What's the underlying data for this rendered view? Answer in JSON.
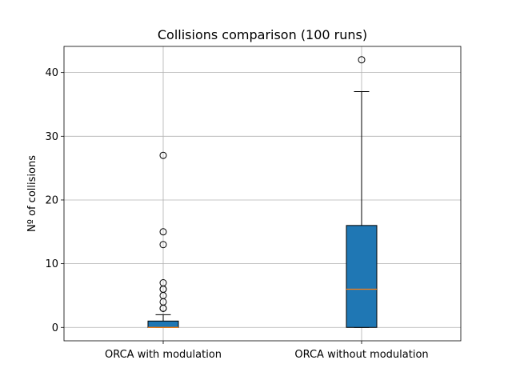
{
  "chart_data": {
    "type": "box",
    "title": "Collisions comparison (100 runs)",
    "xlabel": "",
    "ylabel": "Nº of collisions",
    "ylim": [
      -2.1,
      44.1
    ],
    "yticks": [
      0,
      10,
      20,
      30,
      40
    ],
    "grid": true,
    "colors": {
      "box_fill": "#1f77b4",
      "median": "#ff7f0e",
      "grid": "#b0b0b0"
    },
    "categories": [
      "ORCA with modulation",
      "ORCA without modulation"
    ],
    "series": [
      {
        "q1": 0,
        "median": 0,
        "q3": 1,
        "whisker_low": 0,
        "whisker_high": 2,
        "fliers": [
          3,
          3,
          4,
          5,
          6,
          6,
          7,
          13,
          15,
          27
        ]
      },
      {
        "q1": 0,
        "median": 6,
        "q3": 16,
        "whisker_low": 0,
        "whisker_high": 37,
        "fliers": [
          42
        ]
      }
    ]
  }
}
